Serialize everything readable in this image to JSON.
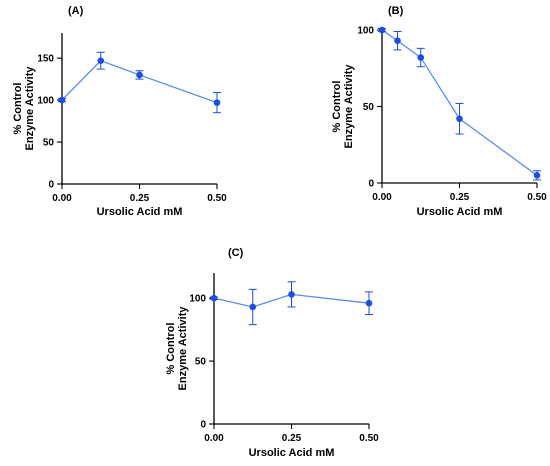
{
  "colors": {
    "series": "#1a4fe0",
    "line": "#5b8df0",
    "axis": "#000000"
  },
  "chart_data": [
    {
      "type": "line",
      "panel_label": "(A)",
      "x": [
        0.0,
        0.125,
        0.25,
        0.5
      ],
      "series": [
        {
          "values": [
            100,
            147,
            130,
            97
          ],
          "errors": [
            2,
            10,
            5,
            12
          ]
        }
      ],
      "xticks": [
        0.0,
        0.25,
        0.5
      ],
      "xtick_labels": [
        "0.00",
        "0.25",
        "0.50"
      ],
      "yticks": [
        0,
        50,
        100,
        150
      ],
      "ytick_labels": [
        "0",
        "50",
        "100",
        "150"
      ],
      "xlim": [
        0,
        0.5
      ],
      "ylim": [
        0,
        180
      ],
      "xlabel": "Ursolic Acid  mM",
      "ylabel": [
        "% Control",
        "Enzyme Activity"
      ],
      "grid": false
    },
    {
      "type": "line",
      "panel_label": "(B)",
      "x": [
        0.0,
        0.05,
        0.125,
        0.25,
        0.5
      ],
      "series": [
        {
          "values": [
            100,
            93,
            82,
            42,
            5
          ],
          "errors": [
            1,
            6,
            6,
            10,
            3
          ]
        }
      ],
      "xticks": [
        0.0,
        0.25,
        0.5
      ],
      "xtick_labels": [
        "0.00",
        "0.25",
        "0.50"
      ],
      "yticks": [
        0,
        50,
        100
      ],
      "ytick_labels": [
        "0",
        "50",
        "100"
      ],
      "xlim": [
        0,
        0.5
      ],
      "ylim": [
        0,
        100
      ],
      "xlabel": "Ursolic Acid mM",
      "ylabel": [
        "% Control",
        "Enzyme Activity"
      ],
      "grid": false
    },
    {
      "type": "line",
      "panel_label": "(C)",
      "x": [
        0.0,
        0.125,
        0.25,
        0.5
      ],
      "series": [
        {
          "values": [
            100,
            93,
            103,
            96
          ],
          "errors": [
            1,
            14,
            10,
            9
          ]
        }
      ],
      "xticks": [
        0.0,
        0.25,
        0.5
      ],
      "xtick_labels": [
        "0.00",
        "0.25",
        "0.50"
      ],
      "yticks": [
        0,
        50,
        100
      ],
      "ytick_labels": [
        "0",
        "50",
        "100"
      ],
      "xlim": [
        0,
        0.5
      ],
      "ylim": [
        0,
        120
      ],
      "xlabel": "Ursolic Acid mM",
      "ylabel": [
        "% Control",
        "Enzyme Activity"
      ],
      "grid": false
    }
  ]
}
